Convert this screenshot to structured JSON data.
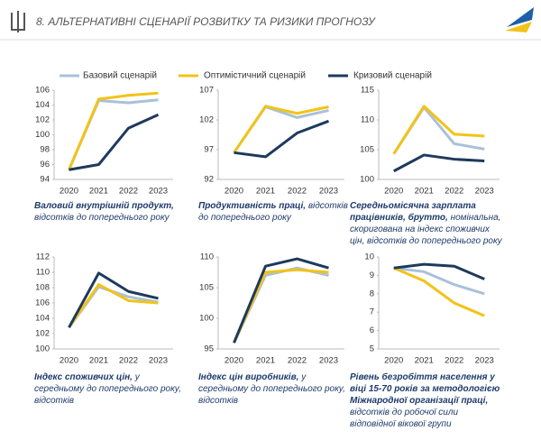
{
  "header": {
    "title": "8. АЛЬТЕРНАТИВНІ СЦЕНАРІЇ РОЗВИТКУ ТА РИЗИКИ ПРОГНОЗУ"
  },
  "legend": [
    {
      "name": "Базовий сценарій",
      "color": "#a9c1d9"
    },
    {
      "name": "Оптимістичний сценарій",
      "color": "#f2c318"
    },
    {
      "name": "Кризовий сценарій",
      "color": "#1e3a5c"
    }
  ],
  "chart_data": [
    {
      "type": "line",
      "title": "Валовий внутрішній продукт,",
      "subtitle": "відсотків до попереднього року",
      "categories": [
        "2020",
        "2021",
        "2022",
        "2023"
      ],
      "ylim": [
        94,
        106
      ],
      "yticks": [
        94,
        96,
        98,
        100,
        102,
        104,
        106
      ],
      "series": [
        {
          "values": [
            95.3,
            104.6,
            104.3,
            104.7
          ]
        },
        {
          "values": [
            95.3,
            104.8,
            105.3,
            105.6
          ]
        },
        {
          "values": [
            95.3,
            96.0,
            100.9,
            102.7
          ]
        }
      ]
    },
    {
      "type": "line",
      "title": "Продуктивність праці,",
      "subtitle": "відсотків до попереднього року",
      "categories": [
        "2020",
        "2021",
        "2022",
        "2023"
      ],
      "ylim": [
        92,
        107
      ],
      "yticks": [
        92,
        97,
        102,
        107
      ],
      "series": [
        {
          "values": [
            96.5,
            104.2,
            102.4,
            103.6
          ]
        },
        {
          "values": [
            96.5,
            104.3,
            103.1,
            104.2
          ]
        },
        {
          "values": [
            96.5,
            95.8,
            99.8,
            101.8
          ]
        }
      ]
    },
    {
      "type": "line",
      "title": "Середньомісячна зарплата працівників, брутто,",
      "subtitle": "номінальна, скоригована на індекс споживчих цін, відсотків до попереднього року",
      "categories": [
        "2020",
        "2021",
        "2022",
        "2023"
      ],
      "ylim": [
        100,
        115
      ],
      "yticks": [
        100,
        105,
        110,
        115
      ],
      "series": [
        {
          "values": [
            104.3,
            112.1,
            106.0,
            105.1
          ]
        },
        {
          "values": [
            104.3,
            112.3,
            107.6,
            107.3
          ]
        },
        {
          "values": [
            101.4,
            104.1,
            103.4,
            103.1
          ]
        }
      ]
    },
    {
      "type": "line",
      "title": "Індекс споживчих цін,",
      "subtitle": "у середньому до попереднього року, відсотків",
      "categories": [
        "2020",
        "2021",
        "2022",
        "2023"
      ],
      "ylim": [
        100,
        112
      ],
      "yticks": [
        100,
        102,
        104,
        106,
        108,
        110,
        112
      ],
      "series": [
        {
          "values": [
            102.8,
            108.1,
            106.8,
            106.1
          ]
        },
        {
          "values": [
            102.8,
            108.4,
            106.3,
            106.0
          ]
        },
        {
          "values": [
            102.8,
            109.9,
            107.5,
            106.6
          ]
        }
      ]
    },
    {
      "type": "line",
      "title": "Індекс цін виробників,",
      "subtitle": "у середньому до попереднього року, відсотків",
      "categories": [
        "2020",
        "2021",
        "2022",
        "2023"
      ],
      "ylim": [
        95,
        110
      ],
      "yticks": [
        95,
        100,
        105,
        110
      ],
      "series": [
        {
          "values": [
            96.0,
            107.0,
            108.2,
            107.0
          ]
        },
        {
          "values": [
            96.0,
            107.5,
            107.9,
            107.5
          ]
        },
        {
          "values": [
            96.0,
            108.5,
            109.7,
            108.2
          ]
        }
      ]
    },
    {
      "type": "line",
      "title": "Рівень безробіття населення у віці 15-70 років за методологією Міжнародної організації праці,",
      "subtitle": "відсотків до робочої сили відповідної вікової групи",
      "categories": [
        "2020",
        "2021",
        "2022",
        "2023"
      ],
      "ylim": [
        5,
        10
      ],
      "yticks": [
        5,
        6,
        7,
        8,
        9,
        10
      ],
      "series": [
        {
          "values": [
            9.4,
            9.2,
            8.5,
            8.0
          ]
        },
        {
          "values": [
            9.4,
            8.7,
            7.5,
            6.8
          ]
        },
        {
          "values": [
            9.4,
            9.6,
            9.5,
            8.8
          ]
        }
      ]
    }
  ]
}
